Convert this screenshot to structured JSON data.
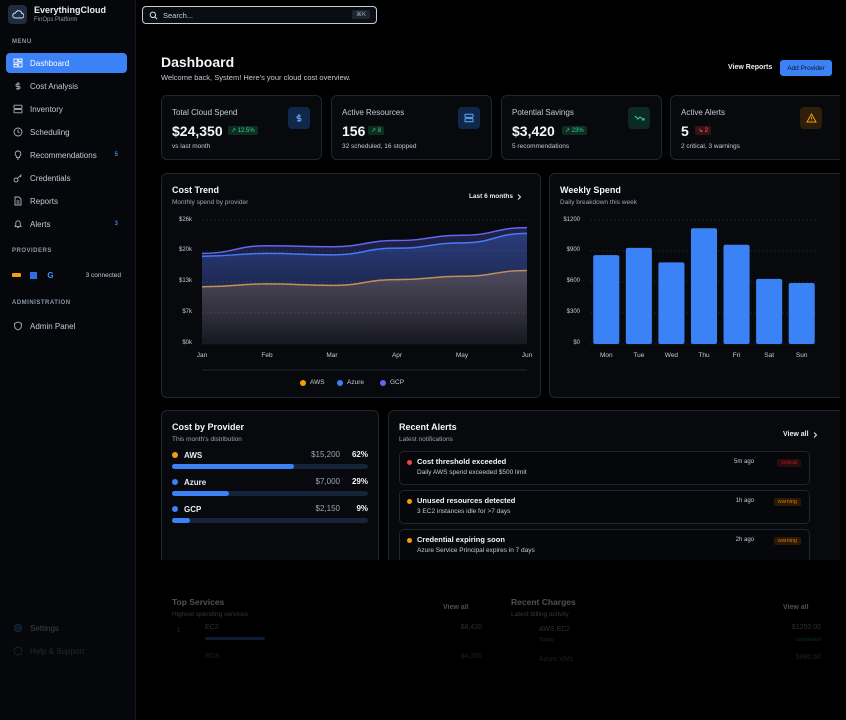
{
  "app": {
    "name": "EverythingCloud",
    "subtitle": "FinOps Platform"
  },
  "search": {
    "placeholder": "Search...",
    "shortcut": "⌘K"
  },
  "sidebar": {
    "menu_label": "MENU",
    "items": [
      {
        "label": "Dashboard",
        "icon": "dashboard-icon",
        "active": true
      },
      {
        "label": "Cost Analysis",
        "icon": "dollar-icon"
      },
      {
        "label": "Inventory",
        "icon": "server-icon"
      },
      {
        "label": "Scheduling",
        "icon": "clock-icon"
      },
      {
        "label": "Recommendations",
        "icon": "lightbulb-icon",
        "badge": "5"
      },
      {
        "label": "Credentials",
        "icon": "key-icon"
      },
      {
        "label": "Reports",
        "icon": "file-icon"
      },
      {
        "label": "Alerts",
        "icon": "bell-icon",
        "badge": "3"
      }
    ],
    "providers_label": "PROVIDERS",
    "providers_count": "3 connected",
    "admin_label": "ADMINISTRATION",
    "admin_item": "Admin Panel",
    "settings": "Settings",
    "help": "Help & Support"
  },
  "header": {
    "title": "Dashboard",
    "welcome": "Welcome back, System! Here's your cloud cost overview.",
    "view_reports": "View Reports",
    "add_provider": "Add Provider"
  },
  "stats": [
    {
      "title": "Total Cloud Spend",
      "value": "$24,350",
      "chip": "↗ 12.5%",
      "sub": "vs last month",
      "icon": "dollar-icon",
      "tone": "green"
    },
    {
      "title": "Active Resources",
      "value": "156",
      "chip": "↗ 8",
      "sub": "32 scheduled, 16 stopped",
      "icon": "server-icon",
      "tone": "green"
    },
    {
      "title": "Potential Savings",
      "value": "$3,420",
      "chip": "↗ 23%",
      "sub": "5 recommendations",
      "icon": "trending-down-icon",
      "tone": "green"
    },
    {
      "title": "Active Alerts",
      "value": "5",
      "chip": "↘ 2",
      "sub": "2 critical, 3 warnings",
      "icon": "warning-icon",
      "tone": "red"
    }
  ],
  "cost_trend": {
    "title": "Cost Trend",
    "subtitle": "Monthly spend by provider",
    "range": "Last 6 months",
    "y_ticks": [
      "$26k",
      "$20k",
      "$13k",
      "$7k",
      "$0k"
    ]
  },
  "weekly_spend": {
    "title": "Weekly Spend",
    "subtitle": "Daily breakdown this week",
    "y_ticks": [
      "$1200",
      "$900",
      "$600",
      "$300",
      "$0"
    ]
  },
  "chart_data": [
    {
      "type": "area",
      "title": "Cost Trend",
      "x": [
        "Jan",
        "Feb",
        "Mar",
        "Apr",
        "May",
        "Jun"
      ],
      "ylim": [
        0,
        26000
      ],
      "series": [
        {
          "name": "AWS",
          "color": "#f59e0b",
          "values": [
            12000,
            12600,
            12300,
            13500,
            14200,
            15400
          ]
        },
        {
          "name": "Azure",
          "color": "#3b82f6",
          "values": [
            18400,
            19000,
            18700,
            20100,
            21200,
            23200
          ]
        },
        {
          "name": "GCP",
          "color": "#6366f1",
          "values": [
            19000,
            20600,
            20400,
            21700,
            22800,
            24400
          ]
        }
      ],
      "legend": "bottom"
    },
    {
      "type": "bar",
      "title": "Weekly Spend",
      "categories": [
        "Mon",
        "Tue",
        "Wed",
        "Thu",
        "Fri",
        "Sat",
        "Sun"
      ],
      "values": [
        860,
        930,
        790,
        1120,
        960,
        630,
        590
      ],
      "ylim": [
        0,
        1200
      ]
    }
  ],
  "cost_by_provider": {
    "title": "Cost by Provider",
    "subtitle": "This month's distribution",
    "items": [
      {
        "name": "AWS",
        "amount": "$15,200",
        "pct": "62%",
        "fraction": 0.62,
        "color": "#f59e0b"
      },
      {
        "name": "Azure",
        "amount": "$7,000",
        "pct": "29%",
        "fraction": 0.29,
        "color": "#3b82f6"
      },
      {
        "name": "GCP",
        "amount": "$2,150",
        "pct": "9%",
        "fraction": 0.09,
        "color": "#3b82f6"
      }
    ]
  },
  "recent_alerts": {
    "title": "Recent Alerts",
    "subtitle": "Latest notifications",
    "view_all": "View all",
    "items": [
      {
        "title": "Cost threshold exceeded",
        "desc": "Daily AWS spend exceeded $500 limit",
        "time": "5m ago",
        "level": "critical",
        "color": "#ef4444"
      },
      {
        "title": "Unused resources detected",
        "desc": "3 EC2 instances idle for >7 days",
        "time": "1h ago",
        "level": "warning",
        "color": "#f59e0b"
      },
      {
        "title": "Credential expiring soon",
        "desc": "Azure Service Principal expires in 7 days",
        "time": "2h ago",
        "level": "warning",
        "color": "#f59e0b"
      }
    ]
  },
  "top_services": {
    "title": "Top Services",
    "subtitle": "Highest spending services",
    "view_all": "View all",
    "items": [
      {
        "name": "EC2",
        "amount": "$8,420"
      },
      {
        "name": "RDS",
        "amount": "$4,350"
      }
    ]
  },
  "recent_charges": {
    "title": "Recent Charges",
    "subtitle": "Latest billing activity",
    "view_all": "View all",
    "items": [
      {
        "name": "AWS EC2",
        "detail": "Today",
        "amount": "$1250.00",
        "status": "completed"
      },
      {
        "name": "Azure VMs",
        "amount": "$890.50"
      }
    ]
  }
}
